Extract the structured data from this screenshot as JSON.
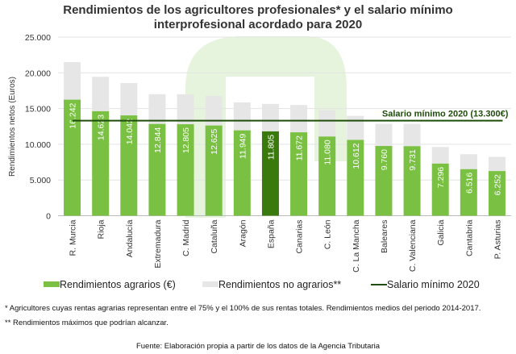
{
  "chart_data": {
    "type": "bar",
    "stacked": true,
    "title_line1": "Rendimientos  de los agricultores profesionales*  y el salario mínimo",
    "title_line2": "interprofesional acordado para 2020",
    "ylabel": "Rendimientos netos (Euros)",
    "xlabel": "",
    "ylim": [
      0,
      25000
    ],
    "yticks": [
      "0",
      "5.000",
      "10.000",
      "15.000",
      "20.000",
      "25.000"
    ],
    "ytick_values": [
      0,
      5000,
      10000,
      15000,
      20000,
      25000
    ],
    "grid": true,
    "legend_position": "bottom",
    "categories": [
      "R. Murcia",
      "Rioja",
      "Andalucía",
      "Extremadura",
      "C. Madrid",
      "Cataluña",
      "Aragón",
      "España",
      "Canarias",
      "C. León",
      "C. La Mancha",
      "Baleares",
      "C. Valenciana",
      "Galicia",
      "Cantabria",
      "P. Asturias"
    ],
    "series": [
      {
        "name": "Rendimientos agrarios (€)",
        "color": "#7ac143",
        "highlight_color": "#3a7a0c",
        "highlight_category": "España",
        "values": [
          16242,
          14623,
          14042,
          12844,
          12805,
          12625,
          11949,
          11805,
          11672,
          11080,
          10612,
          9760,
          9731,
          7296,
          6516,
          6252
        ],
        "labels": [
          "16.242",
          "14.623",
          "14.042",
          "12.844",
          "12.805",
          "12.625",
          "11.949",
          "11.805",
          "11.672",
          "11.080",
          "10.612",
          "9.760",
          "9.731",
          "7.296",
          "6.516",
          "6.252"
        ]
      },
      {
        "name": "Rendimientos no agrarios**",
        "color": "#e6e6e6",
        "values": [
          5260,
          4820,
          4530,
          4160,
          4200,
          4150,
          3910,
          3840,
          3820,
          3660,
          3370,
          3100,
          3130,
          2320,
          2090,
          1980
        ]
      }
    ],
    "reference_line": {
      "name": "Salario mínimo 2020",
      "value": 13300,
      "color": "#1f4d0a",
      "label": "Salario mínimo  2020 (13.300€)"
    }
  },
  "footnotes": {
    "note1": "* Agricultores cuyas rentas agrarias representan  entre  el 75% y el 100% de sus rentas totales. Rendimientos medios del periodo 2014-2017.",
    "note2": "** Rendimientos máximos que podrían alcanzar.",
    "source": "Fuente: Elaboración propia a partir de los datos de la Agencia Tributaria"
  }
}
